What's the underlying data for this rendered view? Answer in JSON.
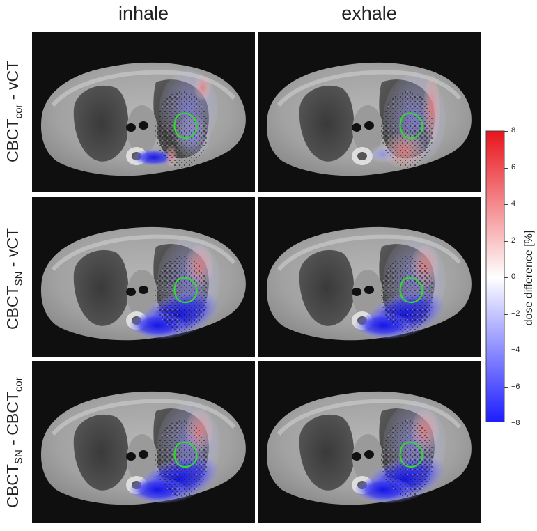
{
  "columns": {
    "inhale": "inhale",
    "exhale": "exhale"
  },
  "rows": [
    {
      "main": "CBCT",
      "sub": "cor",
      "tail": " - vCT"
    },
    {
      "main": "CBCT",
      "sub": "SN",
      "tail": " - vCT"
    },
    {
      "main": "CBCT",
      "sub": "SN",
      "tail": " - CBCT",
      "sub2": "cor"
    }
  ],
  "colorbar": {
    "label": "dose difference [%]",
    "ticks": [
      "8",
      "6",
      "4",
      "2",
      "0",
      "−2",
      "−4",
      "−6",
      "−8"
    ],
    "colors": {
      "max": "#e8141c",
      "mid": "#ffffff",
      "min": "#1a1aff"
    }
  },
  "contour_color": "#33d633"
}
